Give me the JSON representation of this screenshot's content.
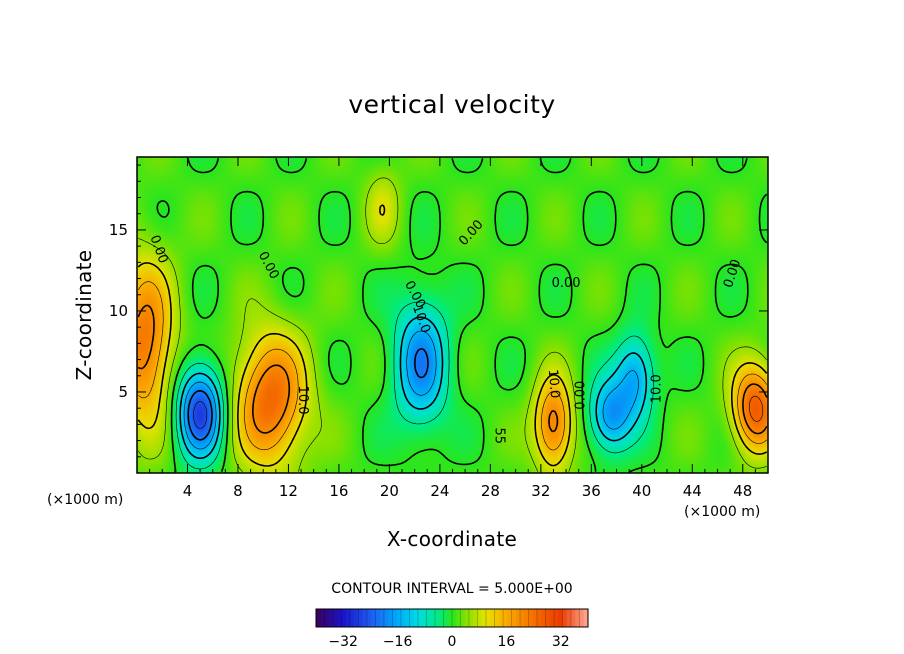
{
  "chart_data": {
    "type": "heatmap",
    "title": "vertical velocity",
    "xlabel": "X-coordinate",
    "ylabel": "Z-coordinate",
    "x_unit": "(×1000 m)",
    "z_unit": "(×1000 m)",
    "xlim": [
      0,
      50
    ],
    "ylim": [
      0,
      19.5
    ],
    "x_ticks": [
      4,
      8,
      12,
      16,
      20,
      24,
      28,
      32,
      36,
      40,
      44,
      48
    ],
    "x_tick_labels": [
      "4",
      "8",
      "12",
      "16",
      "20",
      "24",
      "28",
      "32",
      "36",
      "40",
      "44",
      "48"
    ],
    "y_ticks": [
      5,
      10,
      15
    ],
    "y_tick_labels": [
      "5",
      "10",
      "15"
    ],
    "contour_interval_text": "CONTOUR INTERVAL = 5.000E+00",
    "contour_labels": [
      {
        "text": "0.00",
        "x": 1.7,
        "z": 13.8,
        "angle": 70
      },
      {
        "text": "0.00",
        "x": 10.4,
        "z": 12.8,
        "angle": 62
      },
      {
        "text": "0.00",
        "x": 26.5,
        "z": 14.8,
        "angle": -48
      },
      {
        "text": "0.00",
        "x": 22.0,
        "z": 11.0,
        "angle": 62
      },
      {
        "text": "10.0",
        "x": 22.5,
        "z": 9.5,
        "angle": 70
      },
      {
        "text": "0.00",
        "x": 34.0,
        "z": 11.7,
        "angle": 0
      },
      {
        "text": "0.00",
        "x": 47.2,
        "z": 12.3,
        "angle": -72
      },
      {
        "text": "10.0",
        "x": 13.1,
        "z": 4.5,
        "angle": 90
      },
      {
        "text": "10.0",
        "x": 33.0,
        "z": 5.5,
        "angle": 85
      },
      {
        "text": "0.00",
        "x": 35.2,
        "z": 4.8,
        "angle": -90
      },
      {
        "text": "10.0",
        "x": 41.2,
        "z": 5.2,
        "angle": -90
      },
      {
        "text": "55",
        "x": 28.7,
        "z": 2.3,
        "angle": 90
      }
    ],
    "features": [
      {
        "x": 0.6,
        "z": 8.0,
        "value": 22
      },
      {
        "x": 5.0,
        "z": 3.8,
        "value": -28
      },
      {
        "x": 10.6,
        "z": 4.5,
        "value": 24
      },
      {
        "x": 22.5,
        "z": 6.8,
        "value": -20
      },
      {
        "x": 33.0,
        "z": 3.0,
        "value": 22
      },
      {
        "x": 37.5,
        "z": 3.5,
        "value": -19
      },
      {
        "x": 39.5,
        "z": 6.0,
        "value": -17
      },
      {
        "x": 49.0,
        "z": 4.0,
        "value": 26
      },
      {
        "x": 19.5,
        "z": 16.5,
        "value": 7
      }
    ],
    "colorbar": {
      "min": -40,
      "max": 40,
      "ticks": [
        -32,
        -16,
        0,
        16,
        32
      ],
      "tick_labels": [
        "−32",
        "−16",
        "0",
        "16",
        "32"
      ]
    }
  }
}
